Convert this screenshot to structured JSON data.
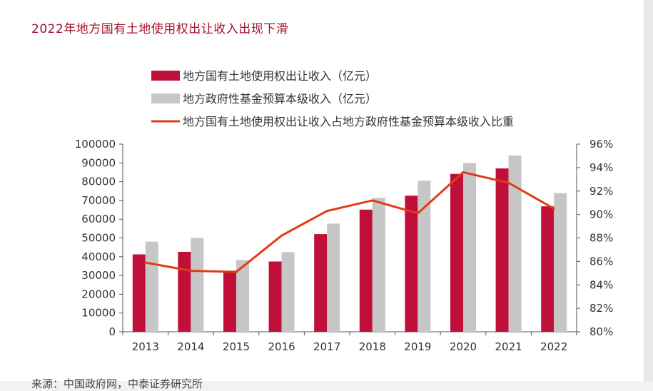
{
  "page": {
    "title": "2022年地方国有土地使用权出让收入出现下滑",
    "source": "来源：中国政府网，中泰证券研究所"
  },
  "chart_data": {
    "type": "bar",
    "title": "",
    "categories": [
      "2013",
      "2014",
      "2015",
      "2016",
      "2017",
      "2018",
      "2019",
      "2020",
      "2021",
      "2022"
    ],
    "series": [
      {
        "name": "地方国有土地使用权出让收入（亿元）",
        "kind": "bar",
        "axis": "left",
        "color": "#c0103a",
        "values": [
          41250,
          42606,
          32547,
          37457,
          52059,
          65096,
          72517,
          84142,
          87051,
          66854
        ]
      },
      {
        "name": "地方政府性基金预算本级收入（亿元）",
        "kind": "bar",
        "axis": "left",
        "color": "#c6c6c6",
        "values": [
          48006,
          50005,
          38220,
          42465,
          57637,
          71372,
          80476,
          89927,
          93936,
          73848
        ]
      },
      {
        "name": "地方国有土地使用权出让收入占地方政府性基金预算本级收入比重",
        "kind": "line",
        "axis": "right",
        "color": "#e03c14",
        "values": [
          85.9,
          85.2,
          85.1,
          88.2,
          90.3,
          91.2,
          90.1,
          93.6,
          92.7,
          90.5
        ]
      }
    ],
    "y_left": {
      "min": 0,
      "max": 100000,
      "ticks": [
        "0",
        "10000",
        "20000",
        "30000",
        "40000",
        "50000",
        "60000",
        "70000",
        "80000",
        "90000",
        "100000"
      ]
    },
    "y_right": {
      "min": 80,
      "max": 96,
      "ticks": [
        "80%",
        "82%",
        "84%",
        "86%",
        "88%",
        "90%",
        "92%",
        "94%",
        "96%"
      ]
    },
    "legend": "top",
    "grid": false
  }
}
